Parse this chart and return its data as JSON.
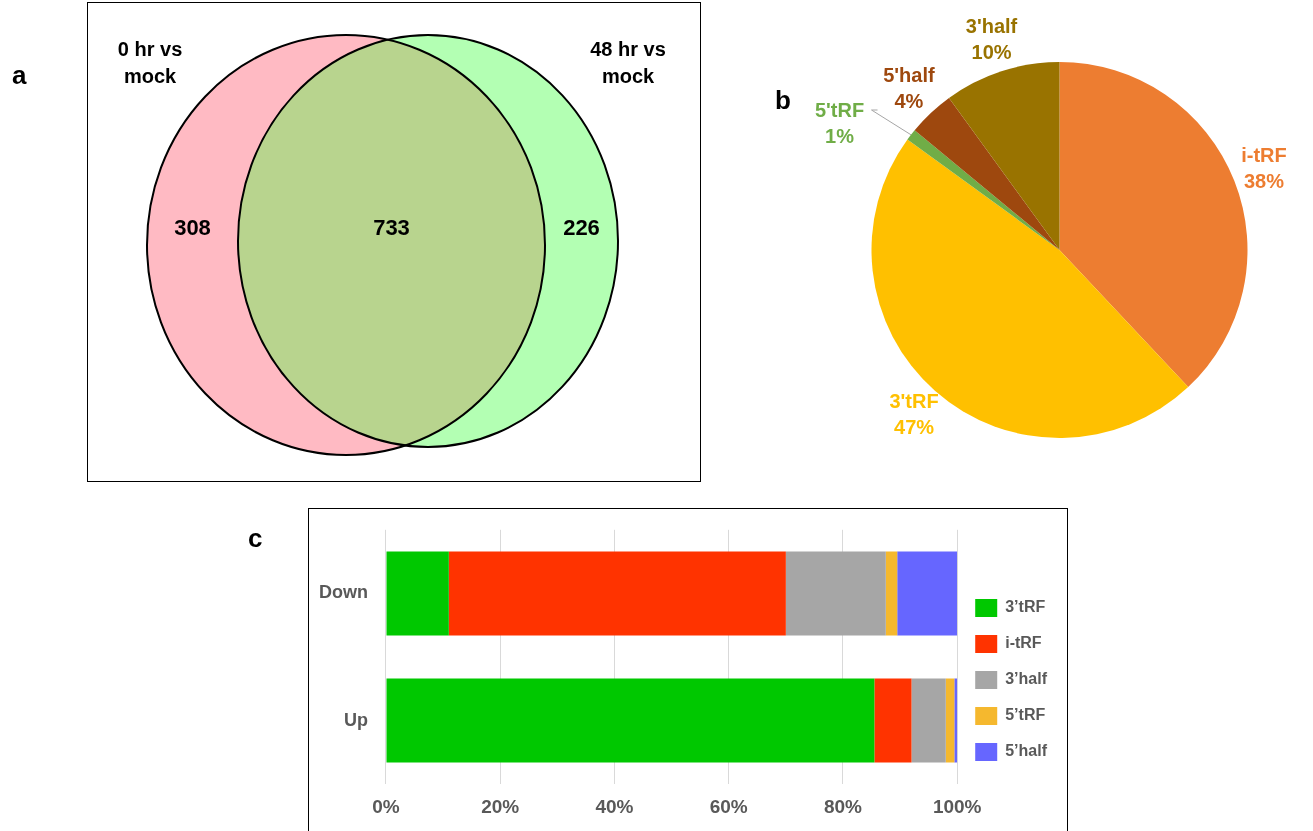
{
  "chart_data": [
    {
      "type": "other",
      "title": "a",
      "annotations": [
        "0 hr vs mock",
        "48 hr vs mock"
      ],
      "values": [
        308,
        733,
        226
      ],
      "colors": [
        "#ffbac3",
        "#b8d48e",
        "#b3ffb3"
      ],
      "data_labels": true
    },
    {
      "type": "pie",
      "title": "b",
      "categories": [
        "i-tRF",
        "3'tRF",
        "5'tRF",
        "5'half",
        "3'half"
      ],
      "values": [
        38,
        47,
        1,
        4,
        10
      ],
      "value_labels": [
        "38%",
        "47%",
        "1%",
        "4%",
        "10%"
      ],
      "colors": [
        "#ed7d31",
        "#ffc000",
        "#70ad47",
        "#9e480e",
        "#997300"
      ]
    },
    {
      "type": "bar",
      "title": "c",
      "orientation": "horizontal",
      "stacked": true,
      "categories": [
        "Down",
        "Up"
      ],
      "series": [
        {
          "name": "3’tRF",
          "color": "#00c800",
          "values": [
            11,
            85.5
          ]
        },
        {
          "name": "i-tRF",
          "color": "#ff3300",
          "values": [
            59,
            6.5
          ]
        },
        {
          "name": "3’half",
          "color": "#a6a6a6",
          "values": [
            17.5,
            6
          ]
        },
        {
          "name": "5’tRF",
          "color": "#f5b82e",
          "values": [
            2,
            1.5
          ]
        },
        {
          "name": "5’half",
          "color": "#6666ff",
          "values": [
            10.5,
            0.5
          ]
        }
      ],
      "xlim": [
        0,
        100
      ],
      "xticks": [
        {
          "value": 0,
          "label": "0%"
        },
        {
          "value": 20,
          "label": "20%"
        },
        {
          "value": 40,
          "label": "40%"
        },
        {
          "value": 60,
          "label": "60%"
        },
        {
          "value": 80,
          "label": "80%"
        },
        {
          "value": 100,
          "label": "100%"
        }
      ],
      "grid": "x",
      "legend": "right"
    }
  ]
}
